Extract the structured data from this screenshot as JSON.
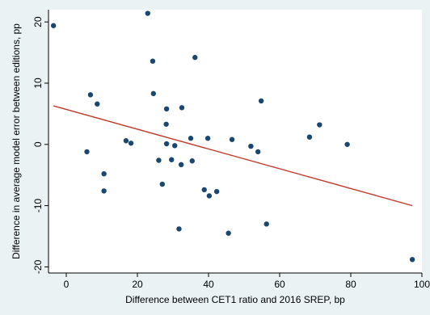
{
  "chart_data": {
    "type": "scatter",
    "title": "",
    "xlabel": "Difference between CET1 ratio and 2016 SREP, bp",
    "ylabel": "Difference in average model error between editions, pp",
    "xlim": [
      -5,
      100
    ],
    "ylim": [
      -21,
      22
    ],
    "xticks": [
      0,
      20,
      40,
      60,
      80,
      100
    ],
    "yticks": [
      -20,
      -10,
      0,
      10,
      20
    ],
    "xtick_labels": [
      "0",
      "20",
      "40",
      "60",
      "80",
      "100"
    ],
    "ytick_labels": [
      "-20",
      "-10",
      "0",
      "10",
      "20"
    ],
    "grid": false,
    "legend": "none",
    "colors": {
      "background": "#eaf2f3",
      "plot_area": "#ffffff",
      "points": "#1a476f",
      "fit_line": "#c0392b"
    },
    "points": [
      {
        "x": -3.6,
        "y": 19.4
      },
      {
        "x": 22.9,
        "y": 21.4
      },
      {
        "x": 24.3,
        "y": 13.6
      },
      {
        "x": 36.2,
        "y": 14.2
      },
      {
        "x": 24.5,
        "y": 8.3
      },
      {
        "x": 6.8,
        "y": 8.1
      },
      {
        "x": 8.7,
        "y": 6.6
      },
      {
        "x": 54.8,
        "y": 7.1
      },
      {
        "x": 28.2,
        "y": 5.8
      },
      {
        "x": 32.5,
        "y": 6.0
      },
      {
        "x": 28.1,
        "y": 3.3
      },
      {
        "x": 71.2,
        "y": 3.2
      },
      {
        "x": 68.4,
        "y": 1.2
      },
      {
        "x": 35.0,
        "y": 1.0
      },
      {
        "x": 39.8,
        "y": 1.0
      },
      {
        "x": 46.6,
        "y": 0.8
      },
      {
        "x": 16.8,
        "y": 0.6
      },
      {
        "x": 18.2,
        "y": 0.2
      },
      {
        "x": 28.2,
        "y": 0.1
      },
      {
        "x": 30.5,
        "y": -0.2
      },
      {
        "x": 51.9,
        "y": -0.3
      },
      {
        "x": 79.0,
        "y": 0.0
      },
      {
        "x": 5.8,
        "y": -1.2
      },
      {
        "x": 53.9,
        "y": -1.2
      },
      {
        "x": 26.0,
        "y": -2.6
      },
      {
        "x": 29.6,
        "y": -2.5
      },
      {
        "x": 35.4,
        "y": -2.7
      },
      {
        "x": 32.3,
        "y": -3.3
      },
      {
        "x": 10.6,
        "y": -4.8
      },
      {
        "x": 27.0,
        "y": -6.5
      },
      {
        "x": 10.6,
        "y": -7.6
      },
      {
        "x": 38.8,
        "y": -7.4
      },
      {
        "x": 42.3,
        "y": -7.7
      },
      {
        "x": 40.2,
        "y": -8.4
      },
      {
        "x": 56.3,
        "y": -13.0
      },
      {
        "x": 31.7,
        "y": -13.8
      },
      {
        "x": 45.6,
        "y": -14.5
      },
      {
        "x": 97.3,
        "y": -18.8
      }
    ],
    "fit_line": {
      "x": [
        -3.6,
        97.3
      ],
      "y": [
        6.3,
        -10.0
      ]
    }
  }
}
